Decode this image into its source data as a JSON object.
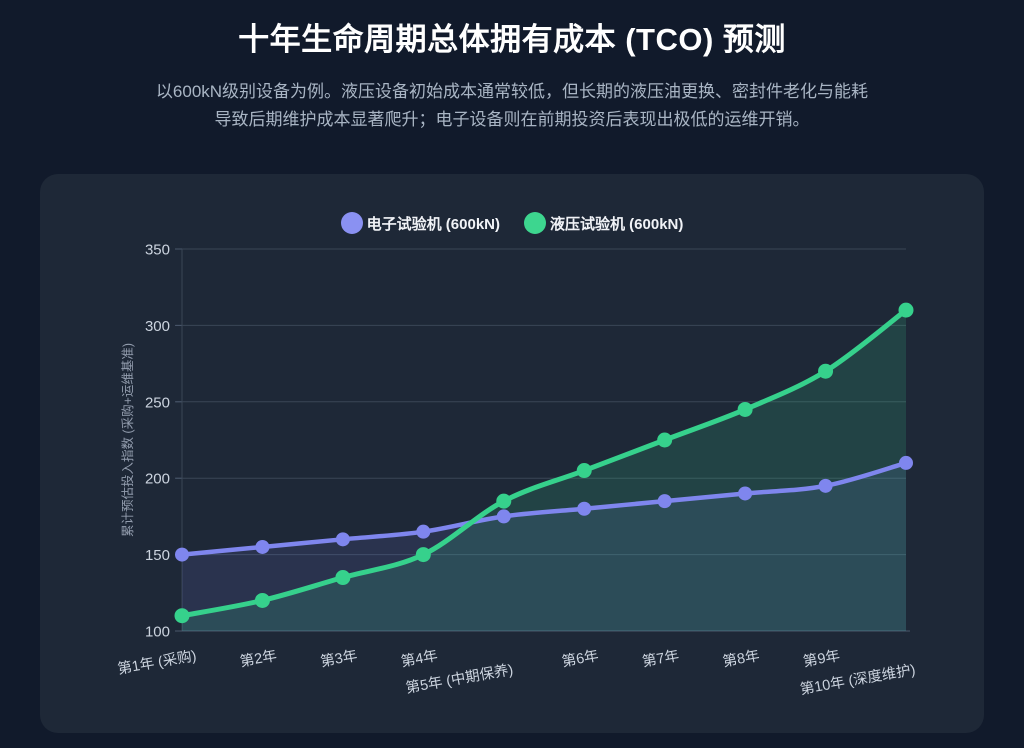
{
  "page": {
    "title": "十年生命周期总体拥有成本 (TCO) 预测",
    "subtitle": "以600kN级别设备为例。液压设备初始成本通常较低，但长期的液压油更换、密封件老化与能耗导致后期维护成本显著爬升；电子设备则在前期投资后表现出极低的运维开销。"
  },
  "colors": {
    "page_background": "#111a2b",
    "card_background": "#1e2837",
    "gridline": "#3a4656",
    "axis_line": "#4a576b",
    "tick_label": "#ccd4df",
    "axis_title": "#939dae",
    "electronic": "#7f86ee",
    "electronic_legend": "#8a91f2",
    "hydraulic": "#36d18c",
    "hydraulic_legend": "#3dd68f"
  },
  "chart_data": {
    "type": "line",
    "title": "",
    "xlabel": "",
    "ylabel": "累计预估投入指数 (采购+运维基准)",
    "categories": [
      "第1年 (采购)",
      "第2年",
      "第3年",
      "第4年",
      "第5年 (中期保养)",
      "第6年",
      "第7年",
      "第8年",
      "第9年",
      "第10年 (深度维护)"
    ],
    "series": [
      {
        "name": "电子试验机 (600kN)",
        "key": "electronic",
        "values": [
          150,
          155,
          160,
          165,
          175,
          180,
          185,
          190,
          195,
          210
        ],
        "line_width": 4.5,
        "marker_radius": 7,
        "area_opacity": 0.13
      },
      {
        "name": "液压试验机 (600kN)",
        "key": "hydraulic",
        "values": [
          110,
          120,
          135,
          150,
          185,
          205,
          225,
          245,
          270,
          310
        ],
        "line_width": 5,
        "marker_radius": 7.5,
        "area_opacity": 0.16
      }
    ],
    "ylim": [
      100,
      350
    ],
    "yticks": [
      100,
      150,
      200,
      250,
      300,
      350
    ],
    "grid": "horizontal",
    "smooth": true,
    "area": true,
    "legend_position": "top",
    "x_label_rotation_deg": -10
  }
}
